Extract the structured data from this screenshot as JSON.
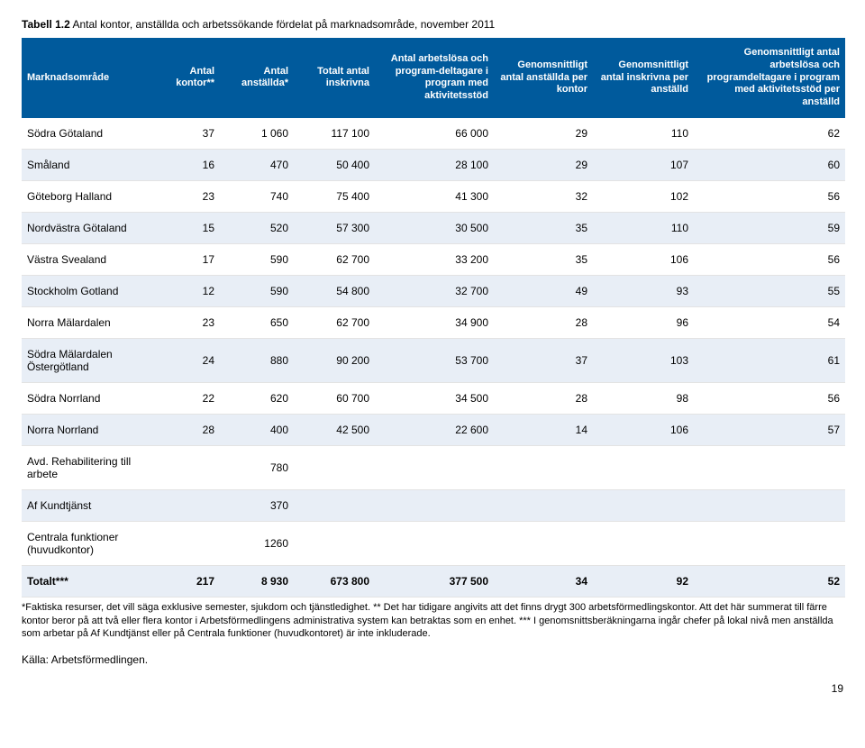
{
  "caption_bold": "Tabell 1.2",
  "caption_rest": " Antal kontor, anställda och arbetssökande fördelat på marknadsområde, november 2011",
  "headers": [
    "Marknadsområde",
    "Antal kontor**",
    "Antal anställda*",
    "Totalt antal inskrivna",
    "Antal arbetslösa och program-deltagare i program med aktivitetsstöd",
    "Genomsnittligt antal anställda per kontor",
    "Genomsnittligt antal inskrivna per anställd",
    "Genomsnittligt antal arbetslösa och programdeltagare i program med aktivitetsstöd per anställd"
  ],
  "rows": [
    {
      "label": "Södra Götaland",
      "cells": [
        "37",
        "1 060",
        "117 100",
        "66 000",
        "29",
        "110",
        "62"
      ],
      "alt": false
    },
    {
      "label": "Småland",
      "cells": [
        "16",
        "470",
        "50 400",
        "28 100",
        "29",
        "107",
        "60"
      ],
      "alt": true
    },
    {
      "label": "Göteborg Halland",
      "cells": [
        "23",
        "740",
        "75 400",
        "41 300",
        "32",
        "102",
        "56"
      ],
      "alt": false
    },
    {
      "label": "Nordvästra Götaland",
      "cells": [
        "15",
        "520",
        "57 300",
        "30 500",
        "35",
        "110",
        "59"
      ],
      "alt": true
    },
    {
      "label": "Västra Svealand",
      "cells": [
        "17",
        "590",
        "62 700",
        "33 200",
        "35",
        "106",
        "56"
      ],
      "alt": false
    },
    {
      "label": "Stockholm Gotland",
      "cells": [
        "12",
        "590",
        "54 800",
        "32 700",
        "49",
        "93",
        "55"
      ],
      "alt": true
    },
    {
      "label": "Norra Mälardalen",
      "cells": [
        "23",
        "650",
        "62 700",
        "34 900",
        "28",
        "96",
        "54"
      ],
      "alt": false
    },
    {
      "label": "Södra Mälardalen Östergötland",
      "cells": [
        "24",
        "880",
        "90 200",
        "53 700",
        "37",
        "103",
        "61"
      ],
      "alt": true
    },
    {
      "label": "Södra Norrland",
      "cells": [
        "22",
        "620",
        "60 700",
        "34 500",
        "28",
        "98",
        "56"
      ],
      "alt": false
    },
    {
      "label": "Norra Norrland",
      "cells": [
        "28",
        "400",
        "42 500",
        "22 600",
        "14",
        "106",
        "57"
      ],
      "alt": true
    },
    {
      "label": "Avd. Rehabilitering till arbete",
      "cells": [
        "",
        "780",
        "",
        "",
        "",
        "",
        ""
      ],
      "alt": false
    },
    {
      "label": "Af Kundtjänst",
      "cells": [
        "",
        "370",
        "",
        "",
        "",
        "",
        ""
      ],
      "alt": true
    },
    {
      "label": "Centrala funktioner (huvudkontor)",
      "cells": [
        "",
        "1260",
        "",
        "",
        "",
        "",
        ""
      ],
      "alt": false
    }
  ],
  "total": {
    "label": "Totalt***",
    "cells": [
      "217",
      "8 930",
      "673 800",
      "377 500",
      "34",
      "92",
      "52"
    ],
    "alt": true
  },
  "footnote": "*Faktiska resurser, det vill säga exklusive semester, sjukdom och tjänstledighet. ** Det har tidigare angivits att det finns drygt 300 arbetsförmedlingskontor. Att det här summerat till färre kontor beror på att två eller flera kontor i Arbetsförmedlingens administrativa system kan betraktas som en enhet. *** I genomsnittsberäkningarna ingår chefer på lokal nivå men anställda som arbetar på Af Kundtjänst eller på Centrala funktioner (huvudkontoret) är inte inkluderade.",
  "source": "Källa: Arbetsförmedlingen.",
  "page_number": "19",
  "colors": {
    "header_bg": "#005a9c",
    "header_fg": "#ffffff",
    "alt_row_bg": "#e8eef6",
    "border": "#e3e3e3"
  }
}
